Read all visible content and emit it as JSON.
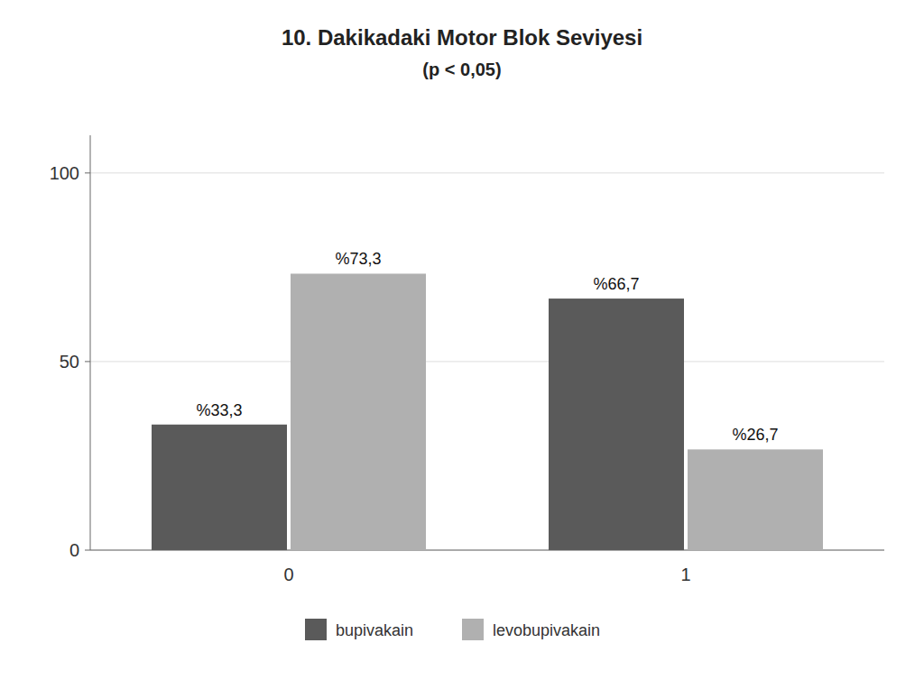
{
  "chart_data": {
    "type": "bar",
    "title": "10. Dakikadaki Motor Blok Seviyesi",
    "subtitle": "(p < 0,05)",
    "categories": [
      "0",
      "1"
    ],
    "series": [
      {
        "name": "bupivakain",
        "color": "#5a5a5a",
        "values": [
          33.3,
          66.7
        ],
        "value_labels": [
          "%33,3",
          "%66,7"
        ]
      },
      {
        "name": "levobupivakain",
        "color": "#b0b0b0",
        "values": [
          73.3,
          26.7
        ],
        "value_labels": [
          "%73,3",
          "%26,7"
        ]
      }
    ],
    "ylim": [
      0,
      110
    ],
    "yticks": [
      0,
      50,
      100
    ],
    "grid": true,
    "legend": "bottom",
    "data_labels": true
  }
}
